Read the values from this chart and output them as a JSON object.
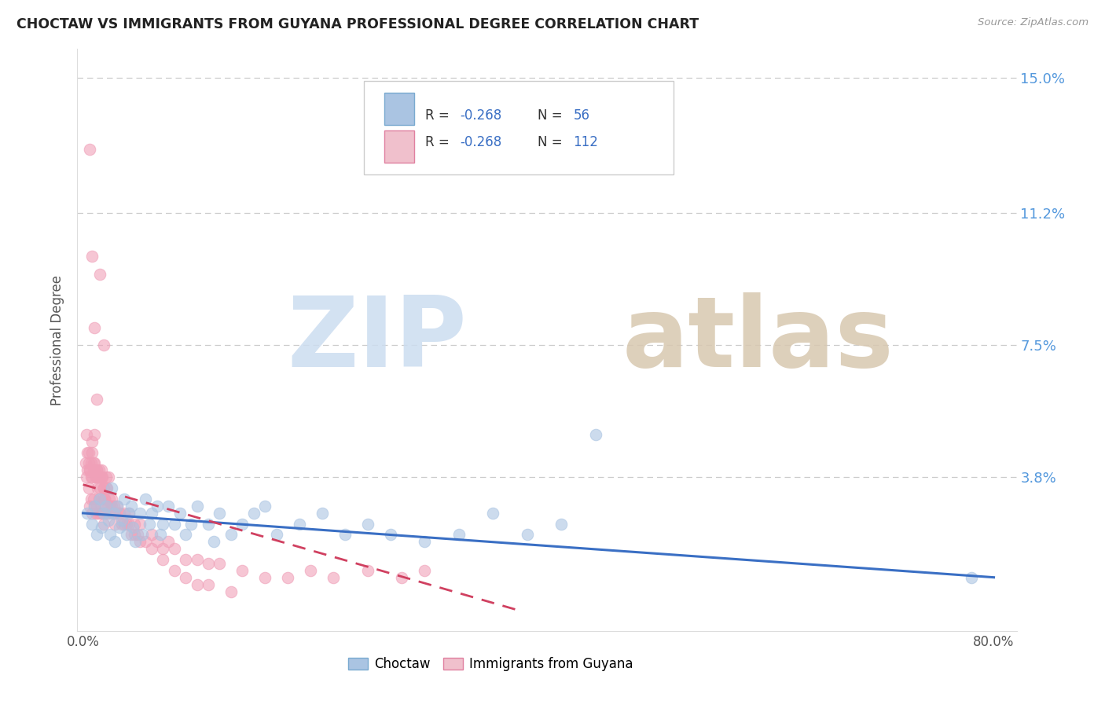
{
  "title": "CHOCTAW VS IMMIGRANTS FROM GUYANA PROFESSIONAL DEGREE CORRELATION CHART",
  "source": "Source: ZipAtlas.com",
  "ylabel": "Professional Degree",
  "xlim": [
    -0.005,
    0.82
  ],
  "ylim": [
    -0.005,
    0.158
  ],
  "ytick_vals": [
    0.0,
    0.038,
    0.075,
    0.112,
    0.15
  ],
  "ytick_labels": [
    "",
    "3.8%",
    "7.5%",
    "11.2%",
    "15.0%"
  ],
  "xtick_vals": [
    0.0,
    0.2,
    0.4,
    0.6,
    0.8
  ],
  "xtick_labels": [
    "0.0%",
    "",
    "",
    "",
    "80.0%"
  ],
  "blue_scatter_color": "#aac4e2",
  "pink_scatter_color": "#f0a0b8",
  "blue_line_color": "#3a6fc4",
  "pink_line_color": "#d04060",
  "grid_color": "#cccccc",
  "title_color": "#222222",
  "source_color": "#999999",
  "ytick_color": "#5599dd",
  "xtick_color": "#555555",
  "ylabel_color": "#555555",
  "watermark_zip_color": "#ccddf0",
  "watermark_atlas_color": "#d8c8b0",
  "legend_edge_color": "#cccccc",
  "blue_legend_face": "#aac4e2",
  "blue_legend_edge": "#7aaad0",
  "pink_legend_face": "#f0c0cc",
  "pink_legend_edge": "#e080a0",
  "choctaw_x": [
    0.004,
    0.008,
    0.01,
    0.012,
    0.015,
    0.016,
    0.018,
    0.02,
    0.022,
    0.024,
    0.025,
    0.027,
    0.028,
    0.03,
    0.032,
    0.034,
    0.036,
    0.038,
    0.04,
    0.042,
    0.044,
    0.046,
    0.05,
    0.052,
    0.055,
    0.058,
    0.06,
    0.065,
    0.068,
    0.07,
    0.075,
    0.08,
    0.085,
    0.09,
    0.095,
    0.1,
    0.11,
    0.115,
    0.12,
    0.13,
    0.14,
    0.15,
    0.16,
    0.17,
    0.19,
    0.21,
    0.23,
    0.25,
    0.27,
    0.3,
    0.33,
    0.36,
    0.39,
    0.42,
    0.45,
    0.78
  ],
  "choctaw_y": [
    0.028,
    0.025,
    0.03,
    0.022,
    0.032,
    0.024,
    0.028,
    0.03,
    0.026,
    0.022,
    0.035,
    0.028,
    0.02,
    0.03,
    0.024,
    0.026,
    0.032,
    0.022,
    0.028,
    0.03,
    0.024,
    0.02,
    0.028,
    0.022,
    0.032,
    0.025,
    0.028,
    0.03,
    0.022,
    0.025,
    0.03,
    0.025,
    0.028,
    0.022,
    0.025,
    0.03,
    0.025,
    0.02,
    0.028,
    0.022,
    0.025,
    0.028,
    0.03,
    0.022,
    0.025,
    0.028,
    0.022,
    0.025,
    0.022,
    0.02,
    0.022,
    0.028,
    0.022,
    0.025,
    0.05,
    0.01
  ],
  "guyana_x": [
    0.002,
    0.003,
    0.004,
    0.005,
    0.005,
    0.006,
    0.006,
    0.007,
    0.007,
    0.008,
    0.008,
    0.008,
    0.009,
    0.009,
    0.01,
    0.01,
    0.01,
    0.011,
    0.011,
    0.012,
    0.012,
    0.013,
    0.013,
    0.014,
    0.014,
    0.015,
    0.015,
    0.016,
    0.016,
    0.017,
    0.017,
    0.018,
    0.018,
    0.019,
    0.02,
    0.02,
    0.021,
    0.022,
    0.022,
    0.023,
    0.024,
    0.025,
    0.026,
    0.027,
    0.028,
    0.03,
    0.032,
    0.034,
    0.036,
    0.038,
    0.04,
    0.042,
    0.045,
    0.048,
    0.05,
    0.055,
    0.06,
    0.065,
    0.07,
    0.075,
    0.08,
    0.09,
    0.1,
    0.11,
    0.12,
    0.14,
    0.16,
    0.18,
    0.2,
    0.22,
    0.25,
    0.28,
    0.3,
    0.003,
    0.004,
    0.005,
    0.006,
    0.007,
    0.008,
    0.009,
    0.01,
    0.011,
    0.012,
    0.013,
    0.014,
    0.015,
    0.016,
    0.017,
    0.018,
    0.019,
    0.02,
    0.022,
    0.025,
    0.028,
    0.032,
    0.036,
    0.04,
    0.045,
    0.05,
    0.06,
    0.07,
    0.08,
    0.09,
    0.1,
    0.11,
    0.13,
    0.006,
    0.008,
    0.01,
    0.012,
    0.015,
    0.018
  ],
  "guyana_y": [
    0.042,
    0.038,
    0.04,
    0.045,
    0.035,
    0.04,
    0.03,
    0.042,
    0.032,
    0.048,
    0.038,
    0.028,
    0.042,
    0.032,
    0.05,
    0.04,
    0.03,
    0.038,
    0.028,
    0.04,
    0.03,
    0.038,
    0.028,
    0.04,
    0.032,
    0.038,
    0.028,
    0.04,
    0.03,
    0.038,
    0.028,
    0.035,
    0.025,
    0.032,
    0.038,
    0.028,
    0.035,
    0.038,
    0.028,
    0.032,
    0.03,
    0.032,
    0.028,
    0.03,
    0.025,
    0.03,
    0.028,
    0.025,
    0.028,
    0.025,
    0.028,
    0.022,
    0.025,
    0.022,
    0.025,
    0.02,
    0.022,
    0.02,
    0.018,
    0.02,
    0.018,
    0.015,
    0.015,
    0.014,
    0.014,
    0.012,
    0.01,
    0.01,
    0.012,
    0.01,
    0.012,
    0.01,
    0.012,
    0.05,
    0.045,
    0.042,
    0.04,
    0.038,
    0.045,
    0.04,
    0.042,
    0.038,
    0.04,
    0.035,
    0.038,
    0.035,
    0.038,
    0.032,
    0.035,
    0.032,
    0.035,
    0.03,
    0.03,
    0.028,
    0.028,
    0.025,
    0.025,
    0.022,
    0.02,
    0.018,
    0.015,
    0.012,
    0.01,
    0.008,
    0.008,
    0.006,
    0.13,
    0.1,
    0.08,
    0.06,
    0.095,
    0.075
  ],
  "blue_regline_x": [
    0.0,
    0.8
  ],
  "blue_regline_y": [
    0.028,
    0.01
  ],
  "pink_regline_x": [
    0.0,
    0.38
  ],
  "pink_regline_y": [
    0.036,
    0.001
  ]
}
